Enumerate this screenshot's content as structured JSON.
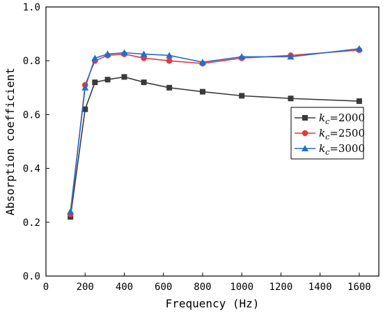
{
  "chart_data": {
    "type": "line",
    "xlabel": "Frequency (Hz)",
    "ylabel": "Absorption coefficient",
    "xlim": [
      0,
      1700
    ],
    "ylim": [
      0.0,
      1.0
    ],
    "x_ticks": [
      0,
      200,
      400,
      600,
      800,
      1000,
      1200,
      1400,
      1600
    ],
    "y_ticks": [
      0.0,
      0.2,
      0.4,
      0.6,
      0.8,
      1.0
    ],
    "x_tick_labels": [
      "0",
      "200",
      "400",
      "600",
      "800",
      "1000",
      "1200",
      "1400",
      "1600"
    ],
    "y_tick_labels": [
      "0.0",
      "0.2",
      "0.4",
      "0.6",
      "0.8",
      "1.0"
    ],
    "grid": false,
    "legend_position": "right",
    "x": [
      125,
      200,
      250,
      315,
      400,
      500,
      630,
      800,
      1000,
      1250,
      1600
    ],
    "series": [
      {
        "name": "kc=2000",
        "legend_prefix": "k",
        "legend_subscript": "c",
        "legend_suffix": "=2000",
        "color": "#3a3a3a",
        "marker": "square",
        "values": [
          0.22,
          0.62,
          0.72,
          0.73,
          0.74,
          0.72,
          0.7,
          0.685,
          0.67,
          0.66,
          0.65
        ]
      },
      {
        "name": "kc=2500",
        "legend_prefix": "k",
        "legend_subscript": "c",
        "legend_suffix": "=2500",
        "color": "#e8373d",
        "marker": "circle",
        "values": [
          0.23,
          0.71,
          0.8,
          0.82,
          0.825,
          0.81,
          0.8,
          0.79,
          0.81,
          0.82,
          0.84
        ]
      },
      {
        "name": "kc=3000",
        "legend_prefix": "k",
        "legend_subscript": "c",
        "legend_suffix": "=3000",
        "color": "#1f6fd1",
        "marker": "triangle",
        "values": [
          0.24,
          0.7,
          0.81,
          0.825,
          0.83,
          0.825,
          0.82,
          0.795,
          0.815,
          0.815,
          0.845
        ]
      }
    ]
  }
}
